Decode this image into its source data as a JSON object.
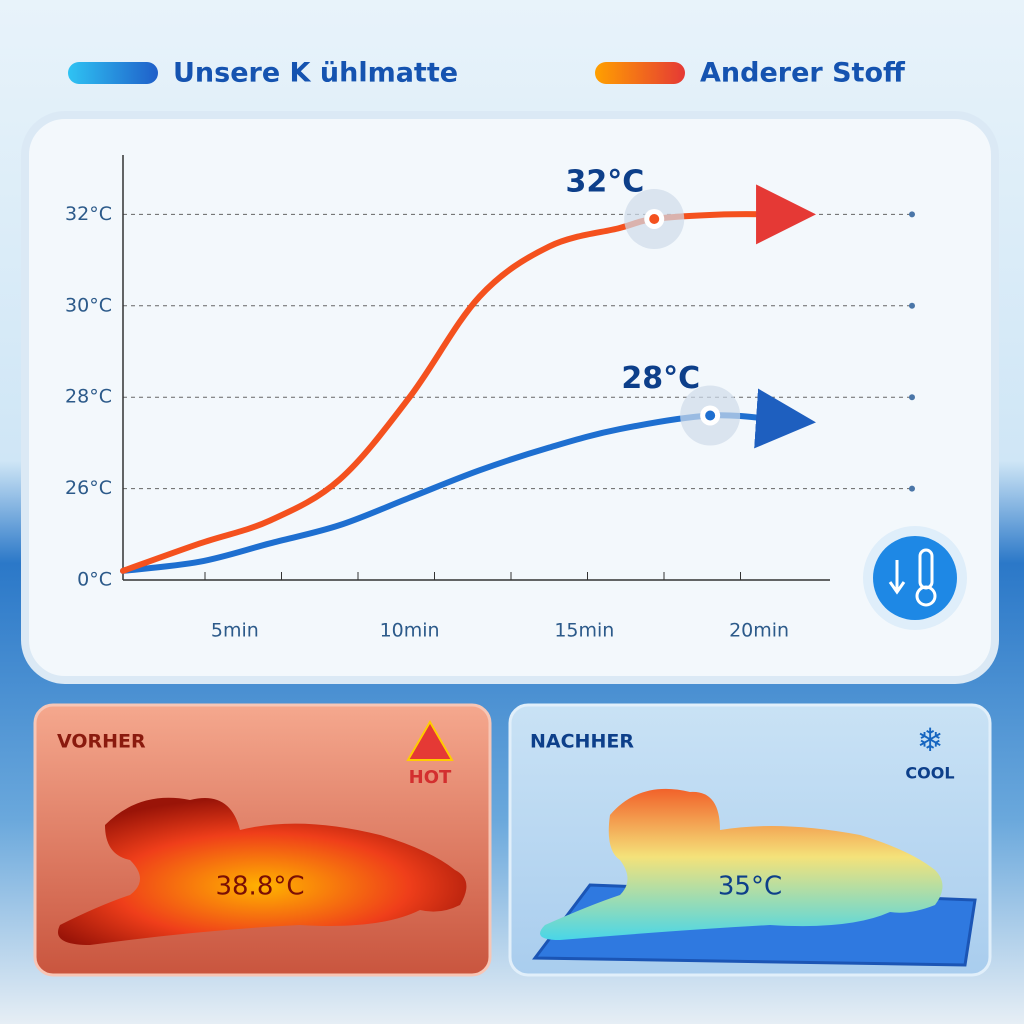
{
  "chart_data": {
    "type": "line",
    "series": [
      {
        "name": "Unsere K ühlmatte",
        "color": "#1e6fd0",
        "x": [
          1.8,
          4,
          6,
          8,
          10,
          12,
          14,
          16,
          18.6,
          20.6
        ],
        "values": [
          24.2,
          24.4,
          24.8,
          25.2,
          25.8,
          26.4,
          26.9,
          27.3,
          27.6,
          27.5
        ],
        "highlight": {
          "x": 18.6,
          "value": 27.6,
          "label": "28°C"
        }
      },
      {
        "name": "Anderer Stoff",
        "color": "#f4511e",
        "x": [
          1.8,
          4,
          6,
          8,
          10,
          12,
          14,
          16,
          17,
          19,
          20.6
        ],
        "values": [
          24.2,
          24.8,
          25.3,
          26.2,
          28.0,
          30.2,
          31.3,
          31.7,
          31.9,
          32,
          32
        ],
        "highlight": {
          "x": 17,
          "value": 31.9,
          "label": "32°C"
        }
      }
    ],
    "xlim": [
      1.8,
      21.6
    ],
    "xticks": [
      {
        "value": 5,
        "label": "5min"
      },
      {
        "value": 10,
        "label": "10min"
      },
      {
        "value": 15,
        "label": "15min"
      },
      {
        "value": 20,
        "label": "20min"
      }
    ],
    "ylim": [
      0,
      33.3
    ],
    "y_break": [
      0,
      24
    ],
    "yticks": [
      {
        "value": 0,
        "label": "0°C"
      },
      {
        "value": 26,
        "label": "26°C"
      },
      {
        "value": 28,
        "label": "28°C"
      },
      {
        "value": 30,
        "label": "30°C"
      },
      {
        "value": 32,
        "label": "32°C"
      }
    ],
    "grid": true
  },
  "panels": {
    "before": {
      "title": "VORHER",
      "badge": "HOT",
      "temperature": "38.8°C"
    },
    "after": {
      "title": "NACHHER",
      "badge": "COOL",
      "temperature": "35°C"
    }
  }
}
